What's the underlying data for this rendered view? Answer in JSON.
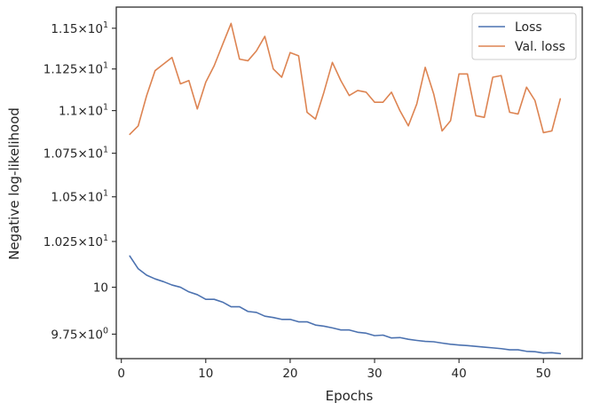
{
  "chart_data": {
    "type": "line",
    "xlabel": "Epochs",
    "ylabel": "Negative log-likelihood",
    "xlim": [
      -0.6,
      54.6
    ],
    "ylim": [
      9.622,
      11.632
    ],
    "yscale": "log",
    "grid": false,
    "legend_position": "top-right",
    "x_ticks": [
      {
        "value": 0,
        "label": "0"
      },
      {
        "value": 10,
        "label": "10"
      },
      {
        "value": 20,
        "label": "20"
      },
      {
        "value": 30,
        "label": "30"
      },
      {
        "value": 40,
        "label": "40"
      },
      {
        "value": 50,
        "label": "50"
      }
    ],
    "y_ticks": [
      {
        "value": 9.75,
        "mantissa": "9.75",
        "exp": "0",
        "plain": ""
      },
      {
        "value": 10,
        "mantissa": "",
        "exp": "1",
        "plain": "10"
      },
      {
        "value": 10.25,
        "mantissa": "1.025",
        "exp": "1",
        "plain": ""
      },
      {
        "value": 10.5,
        "mantissa": "1.05",
        "exp": "1",
        "plain": ""
      },
      {
        "value": 10.75,
        "mantissa": "1.075",
        "exp": "1",
        "plain": ""
      },
      {
        "value": 11,
        "mantissa": "1.1",
        "exp": "1",
        "plain": ""
      },
      {
        "value": 11.25,
        "mantissa": "1.125",
        "exp": "1",
        "plain": ""
      },
      {
        "value": 11.5,
        "mantissa": "1.15",
        "exp": "1",
        "plain": ""
      }
    ],
    "x": [
      1,
      2,
      3,
      4,
      5,
      6,
      7,
      8,
      9,
      10,
      11,
      12,
      13,
      14,
      15,
      16,
      17,
      18,
      19,
      20,
      21,
      22,
      23,
      24,
      25,
      26,
      27,
      28,
      29,
      30,
      31,
      32,
      33,
      34,
      35,
      36,
      37,
      38,
      39,
      40,
      41,
      42,
      43,
      44,
      45,
      46,
      47,
      48,
      49,
      50,
      51,
      52
    ],
    "series": [
      {
        "name": "Loss",
        "color": "#4c72b0",
        "values": [
          10.17,
          10.1,
          10.065,
          10.045,
          10.03,
          10.012,
          10.0,
          9.975,
          9.96,
          9.935,
          9.935,
          9.92,
          9.895,
          9.895,
          9.87,
          9.865,
          9.845,
          9.838,
          9.828,
          9.828,
          9.815,
          9.815,
          9.798,
          9.792,
          9.783,
          9.772,
          9.772,
          9.76,
          9.755,
          9.742,
          9.745,
          9.73,
          9.732,
          9.723,
          9.717,
          9.712,
          9.71,
          9.703,
          9.697,
          9.693,
          9.69,
          9.686,
          9.682,
          9.678,
          9.674,
          9.668,
          9.668,
          9.66,
          9.658,
          9.651,
          9.653,
          9.648
        ]
      },
      {
        "name": "Val. loss",
        "color": "#dd8452",
        "values": [
          10.86,
          10.91,
          11.09,
          11.24,
          11.28,
          11.32,
          11.16,
          11.18,
          11.01,
          11.17,
          11.27,
          11.4,
          11.53,
          11.31,
          11.3,
          11.36,
          11.45,
          11.25,
          11.2,
          11.35,
          11.33,
          10.99,
          10.95,
          11.11,
          11.29,
          11.18,
          11.09,
          11.12,
          11.11,
          11.05,
          11.05,
          11.11,
          11.0,
          10.91,
          11.04,
          11.26,
          11.1,
          10.88,
          10.94,
          11.22,
          11.22,
          10.97,
          10.96,
          11.2,
          11.21,
          10.99,
          10.98,
          11.14,
          11.06,
          10.87,
          10.88,
          11.07
        ]
      }
    ]
  }
}
